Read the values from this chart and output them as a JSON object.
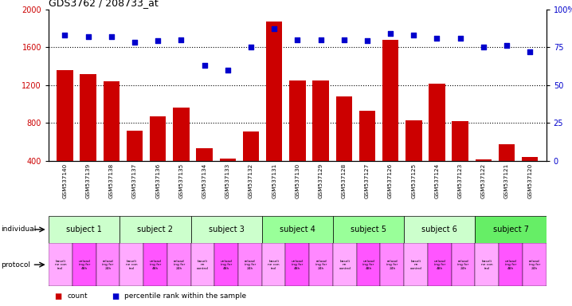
{
  "title": "GDS3762 / 208733_at",
  "samples": [
    "GSM537140",
    "GSM537139",
    "GSM537138",
    "GSM537137",
    "GSM537136",
    "GSM537135",
    "GSM537134",
    "GSM537133",
    "GSM537132",
    "GSM537131",
    "GSM537130",
    "GSM537129",
    "GSM537128",
    "GSM537127",
    "GSM537126",
    "GSM537125",
    "GSM537124",
    "GSM537123",
    "GSM537122",
    "GSM537121",
    "GSM537120"
  ],
  "counts": [
    1360,
    1310,
    1240,
    720,
    870,
    960,
    530,
    420,
    710,
    1870,
    1250,
    1250,
    1080,
    930,
    1680,
    830,
    1210,
    820,
    410,
    570,
    440
  ],
  "percentiles": [
    83,
    82,
    82,
    78,
    79,
    80,
    63,
    60,
    75,
    87,
    80,
    80,
    80,
    79,
    84,
    83,
    81,
    81,
    75,
    76,
    72
  ],
  "ylim_left": [
    400,
    2000
  ],
  "ylim_right": [
    0,
    100
  ],
  "yticks_left": [
    400,
    800,
    1200,
    1600,
    2000
  ],
  "yticks_right": [
    0,
    25,
    50,
    75,
    100
  ],
  "bar_color": "#cc0000",
  "dot_color": "#0000cc",
  "subjects": [
    {
      "label": "subject 1",
      "start": 0,
      "end": 3,
      "color": "#ccffcc"
    },
    {
      "label": "subject 2",
      "start": 3,
      "end": 6,
      "color": "#ccffcc"
    },
    {
      "label": "subject 3",
      "start": 6,
      "end": 9,
      "color": "#ccffcc"
    },
    {
      "label": "subject 4",
      "start": 9,
      "end": 12,
      "color": "#99ff99"
    },
    {
      "label": "subject 5",
      "start": 12,
      "end": 15,
      "color": "#99ff99"
    },
    {
      "label": "subject 6",
      "start": 15,
      "end": 18,
      "color": "#ccffcc"
    },
    {
      "label": "subject 7",
      "start": 18,
      "end": 21,
      "color": "#66ee66"
    }
  ],
  "protocols": [
    {
      "label": "baseli\nne con\ntrol",
      "color": "#ffaaff"
    },
    {
      "label": "unload\ning for\n48h",
      "color": "#ff55ff"
    },
    {
      "label": "reload\ning for\n24h",
      "color": "#ff88ff"
    },
    {
      "label": "baseli\nne con\ntrol",
      "color": "#ffaaff"
    },
    {
      "label": "unload\ning for\n48h",
      "color": "#ff55ff"
    },
    {
      "label": "reload\ning for\n24h",
      "color": "#ff88ff"
    },
    {
      "label": "baseli\nne\ncontrol",
      "color": "#ffaaff"
    },
    {
      "label": "unload\ning for\n48h",
      "color": "#ff55ff"
    },
    {
      "label": "reload\ning for\n24h",
      "color": "#ff88ff"
    },
    {
      "label": "baseli\nne con\ntrol",
      "color": "#ffaaff"
    },
    {
      "label": "unload\ning for\n48h",
      "color": "#ff55ff"
    },
    {
      "label": "reload\ning for\n24h",
      "color": "#ff88ff"
    },
    {
      "label": "baseli\nne\ncontrol",
      "color": "#ffaaff"
    },
    {
      "label": "unload\ning for\n48h",
      "color": "#ff55ff"
    },
    {
      "label": "reload\ning for\n24h",
      "color": "#ff88ff"
    },
    {
      "label": "baseli\nne\ncontrol",
      "color": "#ffaaff"
    },
    {
      "label": "unload\ning for\n48h",
      "color": "#ff55ff"
    },
    {
      "label": "reload\ning for\n24h",
      "color": "#ff88ff"
    },
    {
      "label": "baseli\nne con\ntrol",
      "color": "#ffaaff"
    },
    {
      "label": "unload\ning for\n48h",
      "color": "#ff55ff"
    },
    {
      "label": "reload\ning for\n24h",
      "color": "#ff88ff"
    }
  ],
  "background_color": "#ffffff",
  "dotted_lines": [
    800,
    1200,
    1600
  ],
  "legend_count_color": "#cc0000",
  "legend_dot_color": "#0000cc",
  "xtick_bg_color": "#cccccc"
}
